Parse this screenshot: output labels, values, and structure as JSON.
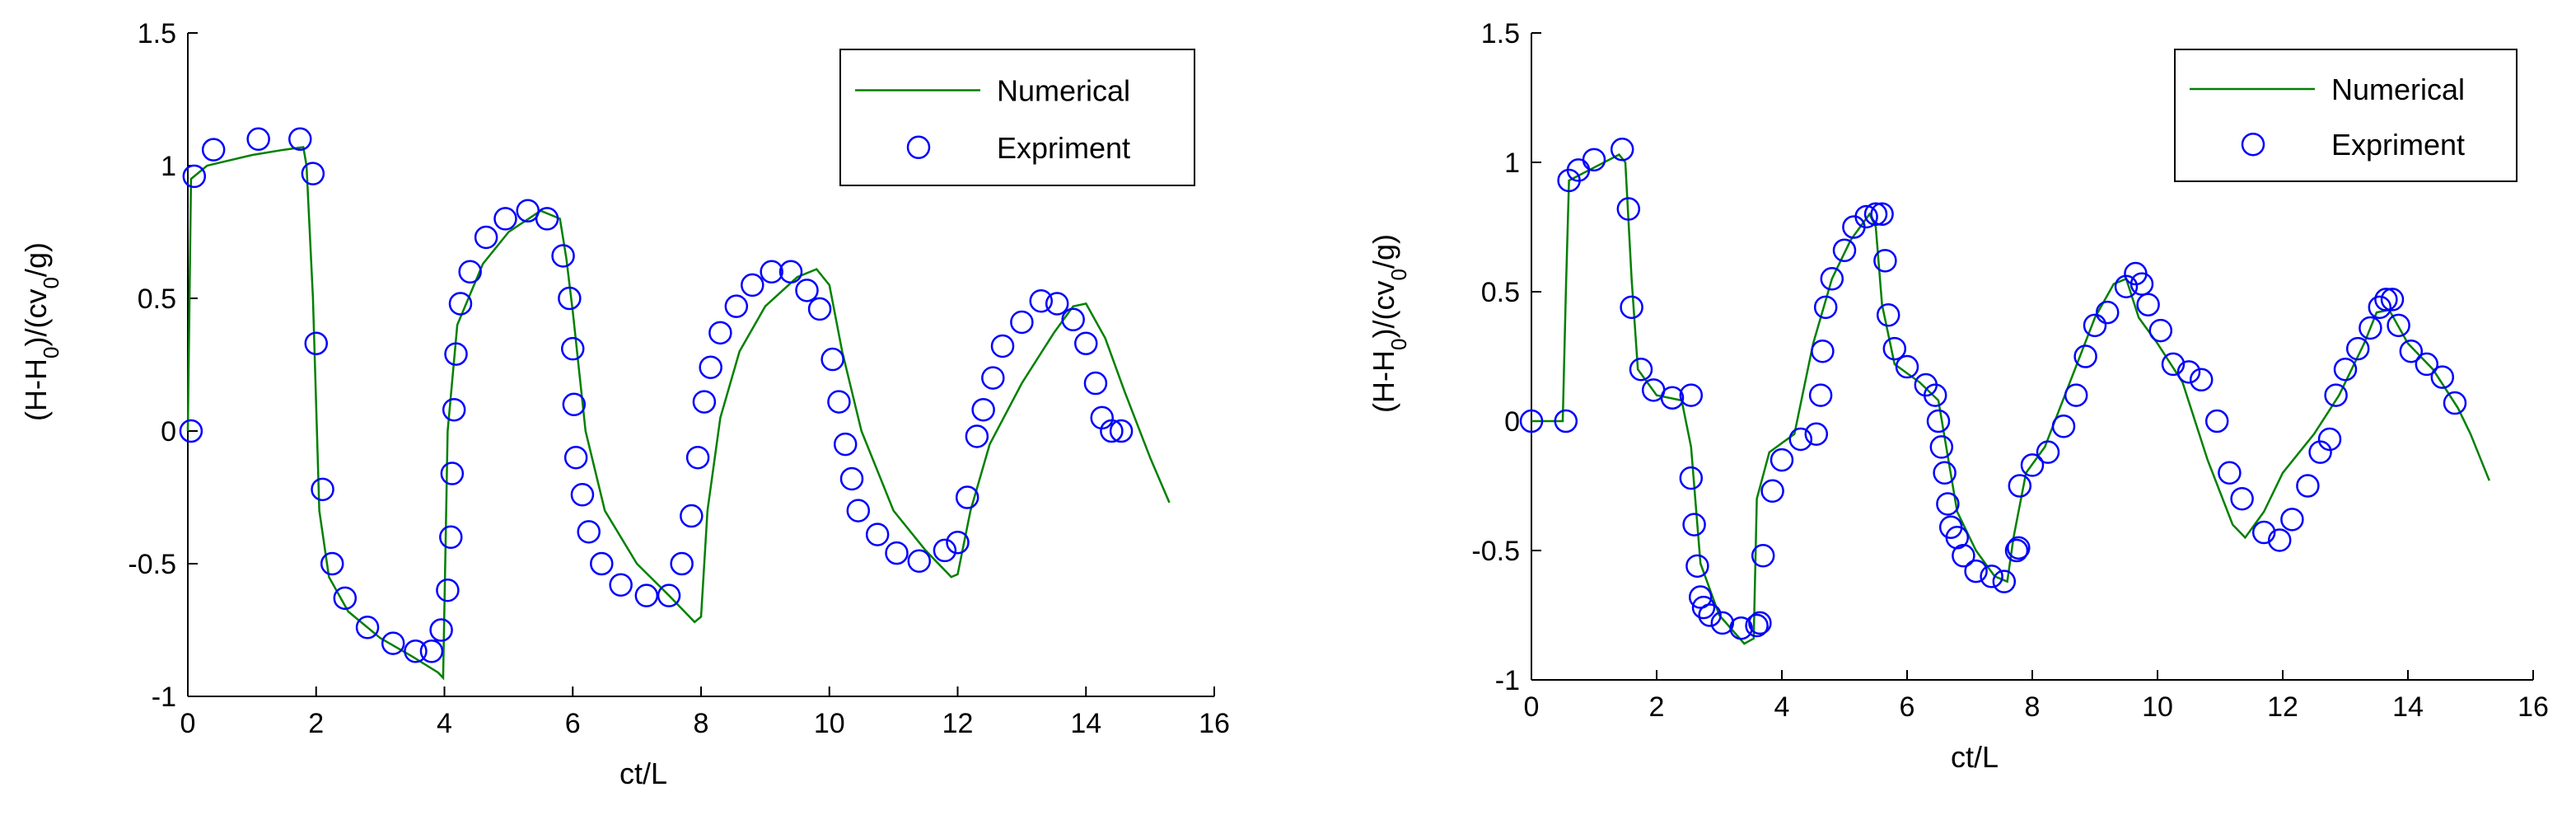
{
  "colors": {
    "numerical": "#008000",
    "experiment": "#0000ff",
    "axis": "#000000"
  },
  "chart_data": [
    {
      "type": "line",
      "xlabel": "ct/L",
      "ylabel": [
        "(H-H",
        "0",
        ")/(cv",
        "0",
        "/g)"
      ],
      "xlim": [
        0,
        16
      ],
      "ylim": [
        -1,
        1.5
      ],
      "xticks": [
        0,
        2,
        4,
        6,
        8,
        10,
        12,
        14,
        16
      ],
      "xtick_labels": [
        "0",
        "2",
        "4",
        "6",
        "8",
        "10",
        "12",
        "14",
        "16"
      ],
      "yticks": [
        -1,
        -0.5,
        0,
        0.5,
        1,
        1.5
      ],
      "ytick_labels": [
        "-1",
        "-0.5",
        "0",
        "0.5",
        "1",
        "1.5"
      ],
      "legend": {
        "position": "top-right",
        "entries": [
          "Numerical",
          "Expriment"
        ]
      },
      "series": [
        {
          "name": "Numerical",
          "style": "line",
          "x": [
            0,
            0.05,
            0.3,
            1.0,
            1.5,
            1.8,
            1.85,
            1.95,
            2.05,
            2.2,
            2.5,
            3.0,
            3.5,
            3.9,
            3.98,
            4.05,
            4.2,
            4.6,
            5.0,
            5.5,
            5.8,
            5.9,
            6.0,
            6.2,
            6.5,
            7.0,
            7.5,
            7.9,
            8.0,
            8.1,
            8.3,
            8.6,
            9.0,
            9.5,
            9.8,
            10.0,
            10.2,
            10.5,
            11.0,
            11.5,
            11.9,
            12.0,
            12.2,
            12.5,
            13.0,
            13.5,
            13.8,
            14.0,
            14.3,
            14.6,
            15.0,
            15.3
          ],
          "y": [
            0,
            0.95,
            1.0,
            1.04,
            1.06,
            1.07,
            1.0,
            0.5,
            -0.3,
            -0.55,
            -0.68,
            -0.78,
            -0.85,
            -0.91,
            -0.93,
            0,
            0.4,
            0.63,
            0.75,
            0.83,
            0.8,
            0.65,
            0.45,
            0.0,
            -0.3,
            -0.5,
            -0.62,
            -0.72,
            -0.7,
            -0.3,
            0.05,
            0.3,
            0.47,
            0.58,
            0.61,
            0.55,
            0.3,
            0.0,
            -0.3,
            -0.45,
            -0.55,
            -0.54,
            -0.3,
            -0.05,
            0.18,
            0.37,
            0.47,
            0.48,
            0.35,
            0.15,
            -0.1,
            -0.27
          ]
        },
        {
          "name": "Expriment",
          "style": "markers",
          "x": [
            0.05,
            0.1,
            0.4,
            1.1,
            1.75,
            1.95,
            2.0,
            2.1,
            2.25,
            2.45,
            2.8,
            3.2,
            3.55,
            3.8,
            3.95,
            4.05,
            4.1,
            4.12,
            4.15,
            4.18,
            4.25,
            4.4,
            4.65,
            4.95,
            5.3,
            5.6,
            5.85,
            5.95,
            6.0,
            6.02,
            6.05,
            6.15,
            6.25,
            6.45,
            6.75,
            7.15,
            7.5,
            7.7,
            7.85,
            7.95,
            8.05,
            8.15,
            8.3,
            8.55,
            8.8,
            9.1,
            9.4,
            9.65,
            9.85,
            10.05,
            10.15,
            10.25,
            10.35,
            10.45,
            10.75,
            11.05,
            11.4,
            11.8,
            12.0,
            12.15,
            12.3,
            12.4,
            12.55,
            12.7,
            13.0,
            13.3,
            13.55,
            13.8,
            14.0,
            14.15,
            14.25,
            14.4,
            14.55
          ],
          "y": [
            0,
            0.96,
            1.06,
            1.1,
            1.1,
            0.97,
            0.33,
            -0.22,
            -0.5,
            -0.63,
            -0.74,
            -0.8,
            -0.83,
            -0.83,
            -0.75,
            -0.6,
            -0.4,
            -0.16,
            0.08,
            0.29,
            0.48,
            0.6,
            0.73,
            0.8,
            0.83,
            0.8,
            0.66,
            0.5,
            0.31,
            0.1,
            -0.1,
            -0.24,
            -0.38,
            -0.5,
            -0.58,
            -0.62,
            -0.62,
            -0.5,
            -0.32,
            -0.1,
            0.11,
            0.24,
            0.37,
            0.47,
            0.55,
            0.6,
            0.6,
            0.53,
            0.46,
            0.27,
            0.11,
            -0.05,
            -0.18,
            -0.3,
            -0.39,
            -0.46,
            -0.49,
            -0.45,
            -0.42,
            -0.25,
            -0.02,
            0.08,
            0.2,
            0.32,
            0.41,
            0.49,
            0.48,
            0.42,
            0.33,
            0.18,
            0.05,
            0.0,
            0.0
          ]
        }
      ]
    },
    {
      "type": "line",
      "xlabel": "ct/L",
      "ylabel": [
        "(H-H",
        "0",
        ")/(cv",
        "0",
        "/g)"
      ],
      "xlim": [
        0,
        16
      ],
      "ylim": [
        -1,
        1.5
      ],
      "xticks": [
        0,
        2,
        4,
        6,
        8,
        10,
        12,
        14,
        16
      ],
      "xtick_labels": [
        "0",
        "2",
        "4",
        "6",
        "8",
        "10",
        "12",
        "14",
        "16"
      ],
      "yticks": [
        -1,
        -0.5,
        0,
        0.5,
        1,
        1.5
      ],
      "ytick_labels": [
        "-1",
        "-0.5",
        "0",
        "0.5",
        "1",
        "1.5"
      ],
      "legend": {
        "position": "top-right",
        "entries": [
          "Numerical",
          "Expriment"
        ]
      },
      "series": [
        {
          "name": "Numerical",
          "style": "line",
          "x": [
            0,
            0.5,
            0.55,
            0.6,
            1.0,
            1.4,
            1.5,
            1.6,
            1.7,
            2.0,
            2.4,
            2.55,
            2.7,
            3.0,
            3.4,
            3.55,
            3.6,
            3.8,
            4.2,
            4.5,
            4.8,
            5.1,
            5.4,
            5.5,
            5.6,
            5.8,
            6.2,
            6.5,
            6.8,
            7.1,
            7.4,
            7.6,
            7.7,
            7.9,
            8.2,
            8.6,
            9.0,
            9.3,
            9.5,
            9.7,
            10.0,
            10.4,
            10.8,
            11.2,
            11.4,
            11.7,
            12.0,
            12.5,
            12.9,
            13.3,
            13.5,
            13.7,
            14.0,
            14.4,
            14.8,
            15.0,
            15.3
          ],
          "y": [
            0,
            0,
            0.5,
            0.93,
            0.98,
            1.03,
            1.0,
            0.55,
            0.2,
            0.1,
            0.08,
            -0.1,
            -0.55,
            -0.75,
            -0.86,
            -0.84,
            -0.3,
            -0.12,
            -0.05,
            0.3,
            0.55,
            0.7,
            0.8,
            0.75,
            0.45,
            0.22,
            0.15,
            0.08,
            -0.35,
            -0.5,
            -0.6,
            -0.62,
            -0.45,
            -0.2,
            -0.1,
            0.15,
            0.4,
            0.53,
            0.55,
            0.4,
            0.3,
            0.15,
            -0.15,
            -0.4,
            -0.45,
            -0.35,
            -0.2,
            -0.05,
            0.1,
            0.3,
            0.42,
            0.43,
            0.3,
            0.2,
            0.05,
            -0.05,
            -0.23
          ]
        },
        {
          "name": "Expriment",
          "style": "markers",
          "x": [
            0.0,
            0.55,
            0.6,
            0.75,
            1.0,
            1.45,
            1.55,
            1.6,
            1.75,
            1.95,
            2.25,
            2.55,
            2.55,
            2.6,
            2.65,
            2.7,
            2.75,
            2.85,
            3.05,
            3.35,
            3.6,
            3.65,
            3.7,
            3.85,
            4.0,
            4.3,
            4.55,
            4.62,
            4.65,
            4.7,
            4.8,
            5.0,
            5.15,
            5.35,
            5.5,
            5.6,
            5.65,
            5.7,
            5.8,
            6.0,
            6.3,
            6.45,
            6.5,
            6.55,
            6.6,
            6.65,
            6.7,
            6.8,
            6.9,
            7.1,
            7.35,
            7.55,
            7.75,
            7.78,
            7.8,
            8.0,
            8.25,
            8.5,
            8.7,
            8.85,
            9.0,
            9.2,
            9.5,
            9.65,
            9.75,
            9.85,
            10.05,
            10.25,
            10.5,
            10.7,
            10.95,
            11.15,
            11.35,
            11.7,
            11.95,
            12.15,
            12.4,
            12.6,
            12.75,
            12.85,
            13.0,
            13.2,
            13.4,
            13.55,
            13.65,
            13.75,
            13.85,
            14.05,
            14.3,
            14.55,
            14.75
          ],
          "y": [
            0.0,
            0.0,
            0.93,
            0.97,
            1.01,
            1.05,
            0.82,
            0.44,
            0.2,
            0.12,
            0.09,
            0.1,
            -0.22,
            -0.4,
            -0.56,
            -0.68,
            -0.72,
            -0.75,
            -0.78,
            -0.8,
            -0.79,
            -0.78,
            -0.52,
            -0.27,
            -0.15,
            -0.07,
            -0.05,
            0.1,
            0.27,
            0.44,
            0.55,
            0.66,
            0.75,
            0.79,
            0.8,
            0.8,
            0.62,
            0.41,
            0.28,
            0.21,
            0.14,
            0.1,
            0.0,
            -0.1,
            -0.2,
            -0.32,
            -0.41,
            -0.45,
            -0.52,
            -0.58,
            -0.6,
            -0.62,
            -0.5,
            -0.49,
            -0.25,
            -0.17,
            -0.12,
            -0.02,
            0.1,
            0.25,
            0.37,
            0.42,
            0.52,
            0.57,
            0.53,
            0.45,
            0.35,
            0.22,
            0.19,
            0.16,
            0.0,
            -0.2,
            -0.3,
            -0.43,
            -0.46,
            -0.38,
            -0.25,
            -0.12,
            -0.07,
            0.1,
            0.2,
            0.28,
            0.36,
            0.44,
            0.47,
            0.47,
            0.37,
            0.27,
            0.22,
            0.17,
            0.07
          ]
        }
      ]
    }
  ]
}
